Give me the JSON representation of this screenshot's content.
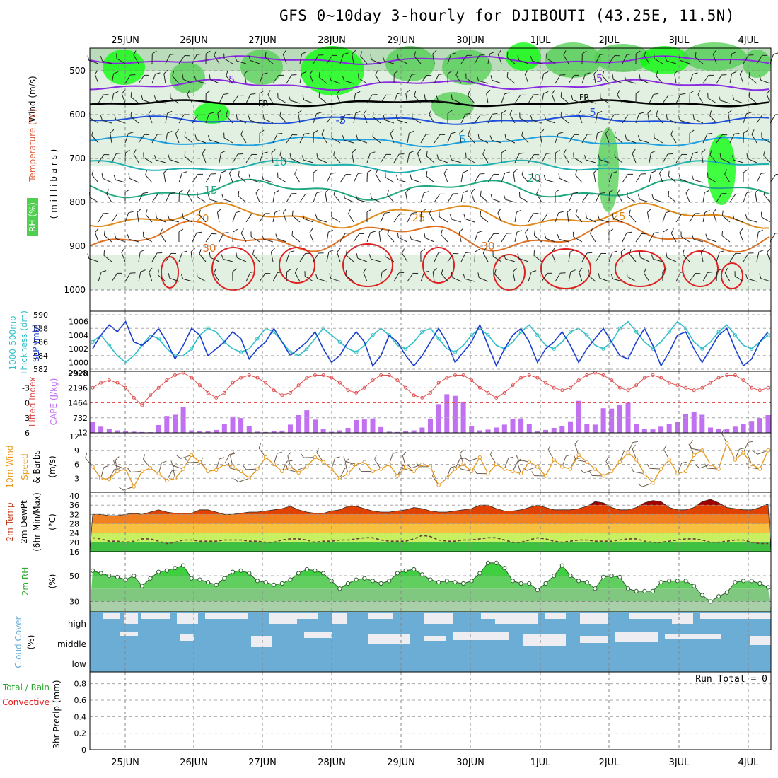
{
  "title": "GFS 0~10day 3-hourly for DJIBOUTI (43.25E, 11.5N)",
  "dates": [
    "25JUN",
    "26JUN",
    "27JUN",
    "28JUN",
    "29JUN",
    "30JUN",
    "1JUL",
    "2JUL",
    "3JUL",
    "4JUL"
  ],
  "colors": {
    "rh_green": "#4fcf4f",
    "rh_bright": "#00ff00",
    "rh_light": "#d9ecd9",
    "rh_mid": "#a9d3a9",
    "temp_purple": "#8a2be2",
    "temp_blue": "#1e50dc",
    "temp_cyan": "#1fa0e0",
    "temp_teal": "#20b0b0",
    "temp_sea": "#20a880",
    "temp_orange": "#e08a1a",
    "temp_dorange": "#e07020",
    "temp_red": "#e02020",
    "slp": "#1a3fd0",
    "thickness": "#30c0c8",
    "cape": "#c070f0",
    "li": "#e05050",
    "wind": "#e89a20",
    "cloud": "#6badd5",
    "cloud_gap": "#ededf2"
  },
  "panels": {
    "upper": {
      "label_wind": "Wind (m/s)",
      "label_temp": "Temperature (°C)",
      "label_rh": "RH (%)",
      "label_mb": "( m i l l i b a r s )",
      "yticks": [
        "500",
        "600",
        "700",
        "800",
        "900",
        "1000"
      ],
      "contour_labels": [
        "-5",
        "-5",
        "FR",
        "FR",
        "-5",
        "5",
        "5",
        "10",
        "15",
        "15",
        "20",
        "20",
        "25",
        "25",
        "30",
        "30"
      ]
    },
    "slp": {
      "label_a": "1000-500mb",
      "label_b": "Thickness (dm)",
      "label_c": "SLP (mb)",
      "left_ticks": [
        "590",
        "588",
        "586",
        "584",
        "582"
      ],
      "right_ticks": [
        "1006",
        "1004",
        "1002",
        "1000",
        "2928"
      ]
    },
    "cape": {
      "label_a": "Lifted Index",
      "label_b": "CAPE (J/kg)",
      "left_ticks": [
        "-3",
        "0",
        "3",
        "6"
      ],
      "right_ticks": [
        "2196",
        "1464",
        "732",
        "12"
      ]
    },
    "wind": {
      "label_a": "10m Wind",
      "label_b": "Speed",
      "label_c": "& Barbs",
      "label_d": "(m/s)",
      "ticks": [
        "12",
        "9",
        "6",
        "3"
      ]
    },
    "temp": {
      "label_a": "2m Temp",
      "label_b": "2m DewPt",
      "label_c": "(6hr Min/Max)",
      "label_d": "(°C)",
      "ticks": [
        "40",
        "36",
        "32",
        "28",
        "24",
        "20",
        "16"
      ]
    },
    "rh": {
      "label_a": "2m RH",
      "label_b": "(%)",
      "ticks": [
        "50",
        "30"
      ]
    },
    "cloud": {
      "label_a": "Cloud Cover",
      "label_b": "(%)",
      "levels": [
        "high",
        "middle",
        "low"
      ]
    },
    "precip": {
      "label_a": "Total / Rain",
      "label_b": "Convective",
      "label_c": "3hr Precip (mm)",
      "ticks": [
        "0.8",
        "0.6",
        "0.4",
        "0.2",
        "0"
      ],
      "run_total": "Run Total = 0"
    }
  },
  "chart_data": [
    {
      "type": "line",
      "name_panel": "SLP and 1000-500mb thickness",
      "series": [
        {
          "name": "SLP (mb)",
          "values": [
            1002,
            1004,
            1005.5,
            1004.5,
            1006,
            1003,
            1002.5,
            1003.5,
            1005,
            1003,
            1000.5,
            1002.5,
            1005,
            1004,
            1001,
            1002,
            1003,
            1004.5,
            1003.5,
            1000.5,
            1002,
            1003,
            1005,
            1003,
            1001,
            1002,
            1003,
            1004.5,
            1002,
            1000,
            1001,
            1003,
            1004.5,
            1003,
            999.5,
            1001,
            1004,
            1003,
            1001,
            999.5,
            1001,
            1003,
            1005,
            1003,
            1000,
            1001.5,
            1003,
            1005.5,
            1002.5,
            999.5,
            1002,
            1004,
            1005,
            1003,
            1000,
            1002,
            1003,
            1004.5,
            1002.5,
            1000,
            1002,
            1003.5,
            1005,
            1003,
            1001,
            1000.5,
            1003,
            1005,
            1002.5,
            999.5,
            1001.5,
            1004,
            1004.5,
            1002,
            1000,
            1002,
            1004,
            1005,
            1002,
            999.5,
            1000.5,
            1003,
            1004.5
          ]
        },
        {
          "name": "1000-500mb Thickness (dm)",
          "values": [
            586,
            587,
            585.5,
            584,
            583,
            584,
            585.5,
            587,
            586.5,
            585,
            584,
            584,
            585,
            587,
            588,
            587.5,
            586,
            585,
            584.5,
            585,
            586.5,
            588,
            587.5,
            586,
            584.5,
            584,
            585,
            586.5,
            588,
            587,
            586,
            585,
            584.5,
            585.5,
            587,
            588,
            587,
            585.5,
            585,
            586,
            587.5,
            588,
            586.5,
            585,
            584.5,
            585.5,
            587,
            588,
            587,
            585.5,
            585,
            586,
            587.5,
            588.5,
            587,
            585.5,
            585,
            586,
            587.5,
            588,
            587,
            585.5,
            585,
            586,
            588,
            589,
            587.5,
            586,
            585,
            586,
            587.5,
            589,
            588,
            586,
            585,
            586,
            587.5,
            588.5,
            587,
            585.5,
            585,
            586,
            587
          ]
        }
      ],
      "ylim_slp": [
        999,
        1007
      ],
      "ylim_thickness": [
        582,
        590
      ]
    },
    {
      "type": "bar",
      "name_panel": "CAPE and Lifted Index",
      "series": [
        {
          "name": "CAPE (J/kg)",
          "values": [
            520,
            300,
            180,
            120,
            80,
            60,
            40,
            30,
            380,
            820,
            880,
            1260,
            120,
            80,
            90,
            140,
            420,
            800,
            720,
            340,
            60,
            40,
            80,
            110,
            400,
            860,
            1100,
            640,
            200,
            50,
            120,
            240,
            620,
            650,
            700,
            280,
            60,
            40,
            80,
            120,
            260,
            680,
            1400,
            1880,
            1800,
            1520,
            340,
            120,
            160,
            260,
            400,
            680,
            700,
            420,
            80,
            140,
            240,
            340,
            560,
            1560,
            440,
            400,
            1200,
            1180,
            1360,
            1460,
            440,
            190,
            170,
            300,
            440,
            540,
            920,
            1000,
            880,
            260,
            180,
            200,
            300,
            440,
            580,
            720,
            860
          ]
        },
        {
          "name": "Lifted Index",
          "values": [
            -3,
            -4,
            -4.5,
            -4,
            -3,
            -1,
            0.5,
            -1.5,
            -3,
            -4.5,
            -5.5,
            -6,
            -5,
            -3.5,
            -2,
            -1,
            -2,
            -4,
            -5,
            -5.5,
            -5,
            -4,
            -2.5,
            -1.5,
            -2,
            -3.5,
            -5,
            -5.5,
            -5.5,
            -5,
            -4,
            -2.5,
            -2,
            -3,
            -4.5,
            -5.5,
            -5.5,
            -4.5,
            -3,
            -1.5,
            -1,
            -2,
            -4,
            -5,
            -5.5,
            -5.5,
            -4.5,
            -3,
            -2,
            -1,
            -2,
            -3.5,
            -5,
            -5.5,
            -5,
            -4,
            -3,
            -2.5,
            -3,
            -4.5,
            -5.5,
            -6,
            -5.5,
            -4.5,
            -3,
            -2.5,
            -3.5,
            -5,
            -5.5,
            -5,
            -4,
            -3.5,
            -3,
            -2.5,
            -3,
            -4,
            -5,
            -5.5,
            -5.5,
            -4.5,
            -3,
            -2.5,
            -3
          ]
        }
      ],
      "ylim_cape": [
        12,
        2928
      ],
      "ylim_li": [
        -6,
        6
      ]
    },
    {
      "type": "line",
      "name_panel": "10m wind speed",
      "series": [
        {
          "name": "Speed (m/s)",
          "values": [
            5.5,
            3,
            2.8,
            4.5,
            5,
            1.2,
            4.5,
            5.2,
            4,
            2.5,
            3,
            5,
            8,
            6.5,
            4.5,
            4.8,
            6,
            5.5,
            4.5,
            3,
            5,
            7.5,
            6,
            4.5,
            5.5,
            4.2,
            5.5,
            7.5,
            6.5,
            5,
            3,
            4,
            6,
            6.5,
            4.5,
            5,
            6,
            3.5,
            5.5,
            4.5,
            6,
            5.5,
            1.5,
            3,
            5,
            6,
            4.5,
            7.5,
            4,
            6,
            5,
            4.5,
            4,
            6.5,
            5.5,
            3.5,
            7,
            5.5,
            5,
            8,
            6.5,
            5,
            3.5,
            4.5,
            6.5,
            8.5,
            7,
            4,
            2,
            5,
            7,
            4,
            4.5,
            8,
            9,
            6,
            5,
            10.5,
            7,
            8.5,
            6,
            5,
            9
          ]
        }
      ],
      "ylim": [
        0,
        12
      ]
    },
    {
      "type": "area",
      "name_panel": "2m temperature and dew point",
      "series": [
        {
          "name": "2m Temp (°C)",
          "values": [
            32,
            32,
            31.5,
            31.5,
            32,
            32.5,
            32,
            33,
            34,
            33,
            32.5,
            32.5,
            32.5,
            34,
            34,
            33,
            32,
            32,
            32.5,
            33,
            33,
            33.5,
            34,
            34.5,
            35.5,
            34,
            33,
            32.5,
            32.5,
            33.5,
            34,
            35.5,
            35.5,
            34.5,
            33.5,
            33,
            33,
            33.5,
            34,
            35,
            34.5,
            33.5,
            33,
            33,
            33.5,
            34,
            34.5,
            36,
            36,
            34.5,
            33.5,
            33.5,
            34,
            35,
            36,
            35,
            34,
            34,
            34,
            34.5,
            35.5,
            37.5,
            37,
            35,
            34,
            34,
            35,
            37,
            38,
            37.5,
            35,
            34,
            34,
            35,
            37.5,
            38.5,
            37,
            35,
            34.5,
            34,
            34,
            35,
            36.5
          ]
        },
        {
          "name": "2m DewPt (°C)",
          "values": [
            22,
            21.5,
            20.5,
            20.5,
            20,
            20.5,
            21.5,
            21.5,
            20.5,
            19.5,
            20,
            21,
            21,
            20.5,
            20.5,
            20.5,
            21,
            21,
            21,
            20.5,
            20.5,
            20,
            20,
            21,
            21.5,
            21.5,
            21,
            20,
            20.5,
            20.5,
            21,
            21,
            21.5,
            22,
            22,
            21,
            20.5,
            20.5,
            20.5,
            21.5,
            23,
            22.5,
            21,
            20.5,
            20.5,
            21,
            21,
            21.5,
            22,
            22,
            21,
            20,
            20,
            21,
            22,
            21.5,
            20.5,
            20,
            20.5,
            21,
            21,
            20.5,
            20.5,
            20.5,
            21,
            21.5,
            21.5,
            20.5,
            20,
            20,
            20.5,
            21,
            21.5,
            21.5,
            21,
            20,
            20,
            20.5,
            21,
            21,
            20,
            19.5,
            19.5
          ]
        }
      ],
      "ylim": [
        16,
        40
      ]
    },
    {
      "type": "area",
      "name_panel": "2m relative humidity",
      "series": [
        {
          "name": "2m RH (%)",
          "values": [
            54,
            52,
            50,
            49,
            47,
            50,
            42,
            48,
            53,
            54,
            56,
            58,
            48,
            47,
            45,
            43,
            48,
            53,
            54,
            52,
            46,
            45,
            43,
            44,
            47,
            52,
            55,
            54,
            52,
            46,
            40,
            44,
            47,
            48,
            46,
            44,
            46,
            52,
            54,
            55,
            51,
            47,
            45,
            46,
            45,
            44,
            46,
            52,
            60,
            60,
            56,
            46,
            44,
            44,
            39,
            44,
            50,
            58,
            50,
            46,
            45,
            40,
            49,
            50,
            49,
            40,
            38,
            38,
            38,
            45,
            46,
            46,
            46,
            42,
            35,
            30,
            34,
            37,
            45,
            46,
            46,
            44,
            41
          ]
        }
      ],
      "ylim": [
        22,
        66
      ]
    }
  ]
}
